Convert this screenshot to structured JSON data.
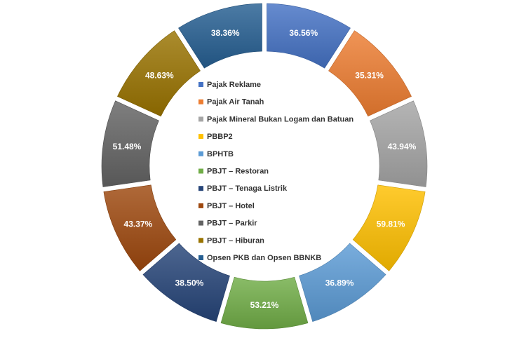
{
  "chart_data": {
    "type": "pie",
    "style": "doughnut",
    "title": "",
    "legend_position": "center",
    "categories": [
      "Pajak Reklame",
      "Pajak Air Tanah",
      "Pajak Mineral Bukan Logam dan Batuan",
      "PBBP2",
      "BPHTB",
      "PBJT – Restoran",
      "PBJT – Tenaga Listrik",
      "PBJT – Hotel",
      "PBJT – Parkir",
      "PBJT – Hiburan",
      "Opsen PKB dan Opsen BBNKB"
    ],
    "values": [
      36.56,
      35.31,
      43.94,
      59.81,
      36.89,
      53.21,
      38.5,
      43.37,
      51.48,
      48.63,
      38.36
    ],
    "labels": [
      "36.56%",
      "35.31%",
      "43.94%",
      "59.81%",
      "36.89%",
      "53.21%",
      "38.50%",
      "43.37%",
      "51.48%",
      "48.63%",
      "38.36%"
    ],
    "colors": [
      "#4472C4",
      "#ED7D31",
      "#A5A5A5",
      "#FFC000",
      "#5B9BD5",
      "#70AD47",
      "#264478",
      "#9E480E",
      "#636363",
      "#997300",
      "#255E91"
    ]
  }
}
